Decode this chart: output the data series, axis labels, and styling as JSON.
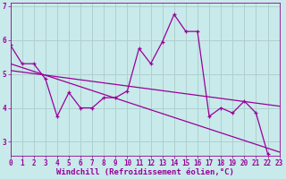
{
  "xlabel": "Windchill (Refroidissement éolien,°C)",
  "bg_color": "#c8eaea",
  "grid_color": "#b0d0d0",
  "line_color": "#990099",
  "x_data": [
    0,
    1,
    2,
    3,
    4,
    5,
    6,
    7,
    8,
    9,
    10,
    11,
    12,
    13,
    14,
    15,
    16,
    17,
    18,
    19,
    20,
    21,
    22,
    23
  ],
  "y_jagged": [
    5.85,
    5.3,
    5.3,
    4.85,
    3.75,
    4.45,
    4.0,
    4.0,
    4.3,
    4.3,
    4.5,
    5.75,
    5.3,
    5.95,
    6.75,
    6.25,
    6.25,
    3.75,
    4.0,
    3.85,
    4.2,
    3.85,
    2.65,
    null
  ],
  "y_line1_start": 5.3,
  "y_line1_end": 2.7,
  "y_line2_start": 5.1,
  "y_line2_end": 4.05,
  "ylim": [
    2.6,
    7.1
  ],
  "xlim": [
    0,
    23
  ],
  "yticks": [
    3,
    4,
    5,
    6,
    7
  ],
  "xticks": [
    0,
    1,
    2,
    3,
    4,
    5,
    6,
    7,
    8,
    9,
    10,
    11,
    12,
    13,
    14,
    15,
    16,
    17,
    18,
    19,
    20,
    21,
    22,
    23
  ],
  "font_color": "#990099",
  "tick_fontsize": 5.5,
  "xlabel_fontsize": 6.5
}
